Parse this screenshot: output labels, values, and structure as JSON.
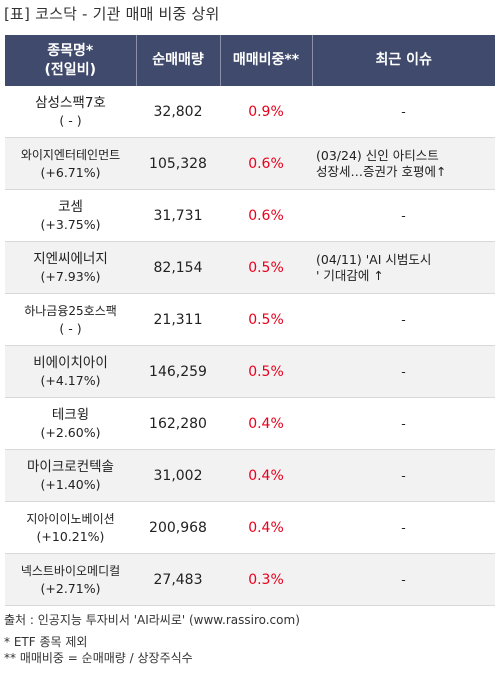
{
  "title": "[표] 코스닥 - 기관 매매 비중 상위",
  "header": {
    "col1_line1": "종목명*",
    "col1_line2": "(전일비)",
    "col2": "순매매량",
    "col3": "매매비중**",
    "col4": "최근 이슈"
  },
  "rows": [
    {
      "name": "삼성스팩7호",
      "change": "( - )",
      "volume": "32,802",
      "ratio": "0.9%",
      "issue1": "-",
      "issue2": ""
    },
    {
      "name": "와이지엔터테인먼트",
      "change": "(+6.71%)",
      "volume": "105,328",
      "ratio": "0.6%",
      "issue1": "(03/24) 신인 아티스트",
      "issue2": "성장세…증권가 호평에↑"
    },
    {
      "name": "코셈",
      "change": "(+3.75%)",
      "volume": "31,731",
      "ratio": "0.6%",
      "issue1": "-",
      "issue2": ""
    },
    {
      "name": "지엔씨에너지",
      "change": "(+7.93%)",
      "volume": "82,154",
      "ratio": "0.5%",
      "issue1": "(04/11) 'AI 시범도시",
      "issue2": "' 기대감에 ↑"
    },
    {
      "name": "하나금융25호스팩",
      "change": "( - )",
      "volume": "21,311",
      "ratio": "0.5%",
      "issue1": "-",
      "issue2": ""
    },
    {
      "name": "비에이치아이",
      "change": "(+4.17%)",
      "volume": "146,259",
      "ratio": "0.5%",
      "issue1": "-",
      "issue2": ""
    },
    {
      "name": "테크윙",
      "change": "(+2.60%)",
      "volume": "162,280",
      "ratio": "0.4%",
      "issue1": "-",
      "issue2": ""
    },
    {
      "name": "마이크로컨텍솔",
      "change": "(+1.40%)",
      "volume": "31,002",
      "ratio": "0.4%",
      "issue1": "-",
      "issue2": ""
    },
    {
      "name": "지아이이노베이션",
      "change": "(+10.21%)",
      "volume": "200,968",
      "ratio": "0.4%",
      "issue1": "-",
      "issue2": ""
    },
    {
      "name": "넥스트바이오메디컬",
      "change": "(+2.71%)",
      "volume": "27,483",
      "ratio": "0.3%",
      "issue1": "-",
      "issue2": ""
    }
  ],
  "footer": {
    "source": "출처 : 인공지능 투자비서 'AI라씨로' (www.rassiro.com)",
    "note1": "* ETF 종목 제외",
    "note2": "** 매매비중 = 순매매량 / 상장주식수"
  },
  "colors": {
    "header_bg": "#404a6c",
    "ratio_text": "#e8001c",
    "row_alt": "#f2f2f2"
  }
}
